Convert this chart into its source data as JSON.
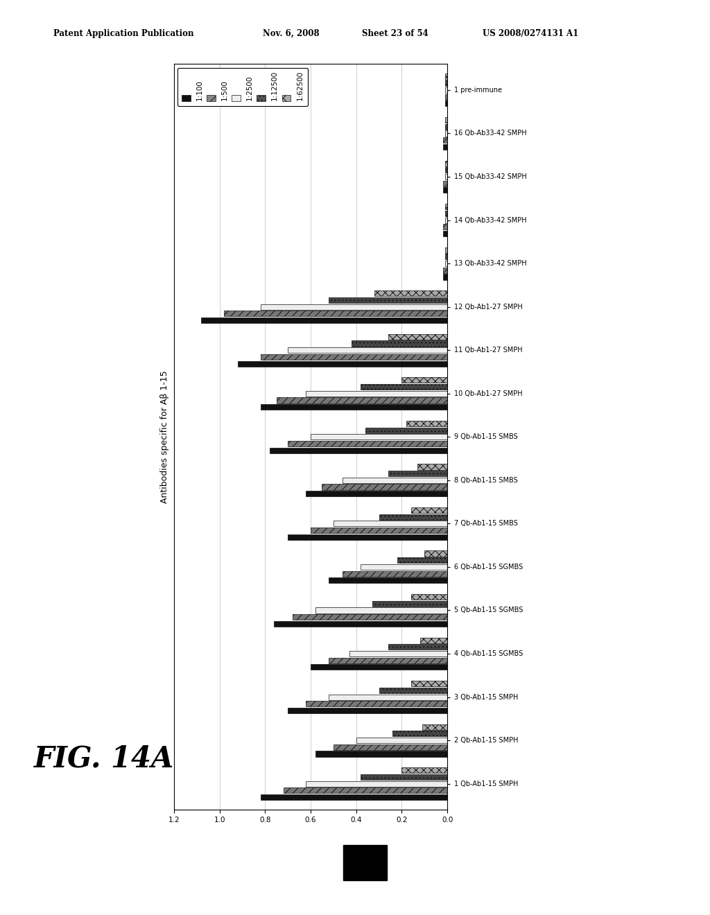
{
  "categories": [
    "1 pre-immune",
    "16 Qb-Ab33-42 SMPH",
    "15 Qb-Ab33-42 SMPH",
    "14 Qb-Ab33-42 SMPH",
    "13 Qb-Ab33-42 SMPH",
    "12 Qb-Ab1-27 SMPH",
    "11 Qb-Ab1-27 SMPH",
    "10 Qb-Ab1-27 SMPH",
    "9 Qb-Ab1-15 SMBS",
    "8 Qb-Ab1-15 SMBS",
    "7 Qb-Ab1-15 SMBS",
    "6 Qb-Ab1-15 SGMBS",
    "5 Qb-Ab1-15 SGMBS",
    "4 Qb-Ab1-15 SGMBS",
    "3 Qb-Ab1-15 SMPH",
    "2 Qb-Ab1-15 SMPH",
    "1 Qb-Ab1-15 SMPH"
  ],
  "series_labels": [
    "1:100",
    "1:500",
    "1:2500",
    "1:12500",
    "1:62500"
  ],
  "series_colors": [
    "#111111",
    "#777777",
    "#eeeeee",
    "#444444",
    "#aaaaaa"
  ],
  "series_hatches": [
    "",
    "///",
    "",
    "...",
    "xxx"
  ],
  "data": [
    [
      0.01,
      0.01,
      0.01,
      0.01,
      0.01
    ],
    [
      0.02,
      0.02,
      0.01,
      0.01,
      0.01
    ],
    [
      0.02,
      0.02,
      0.01,
      0.01,
      0.01
    ],
    [
      0.02,
      0.02,
      0.01,
      0.01,
      0.01
    ],
    [
      0.02,
      0.02,
      0.01,
      0.01,
      0.01
    ],
    [
      1.08,
      0.98,
      0.82,
      0.52,
      0.32
    ],
    [
      0.92,
      0.82,
      0.7,
      0.42,
      0.26
    ],
    [
      0.82,
      0.75,
      0.62,
      0.38,
      0.2
    ],
    [
      0.78,
      0.7,
      0.6,
      0.36,
      0.18
    ],
    [
      0.62,
      0.55,
      0.46,
      0.26,
      0.13
    ],
    [
      0.7,
      0.6,
      0.5,
      0.3,
      0.16
    ],
    [
      0.52,
      0.46,
      0.38,
      0.22,
      0.1
    ],
    [
      0.76,
      0.68,
      0.58,
      0.33,
      0.16
    ],
    [
      0.6,
      0.52,
      0.43,
      0.26,
      0.12
    ],
    [
      0.7,
      0.62,
      0.52,
      0.3,
      0.16
    ],
    [
      0.58,
      0.5,
      0.4,
      0.24,
      0.11
    ],
    [
      0.82,
      0.72,
      0.62,
      0.38,
      0.2
    ]
  ],
  "xlim_left": 1.2,
  "xlim_right": 0.0,
  "xticks": [
    1.2,
    1.0,
    0.8,
    0.6,
    0.4,
    0.2,
    0.0
  ],
  "xticklabels": [
    "1.2",
    "1.0",
    "0.8",
    "0.6",
    "0.4",
    "0.2",
    "0.0"
  ],
  "ylabel": "Antibodies specific for Aβ 1-15",
  "background_color": "#ffffff",
  "header_left": "Patent Application Publication",
  "header_mid1": "Nov. 6, 2008",
  "header_mid2": "Sheet 23 of 54",
  "header_right": "US 2008/0274131 A1",
  "fig_label": "FIG. 14A"
}
